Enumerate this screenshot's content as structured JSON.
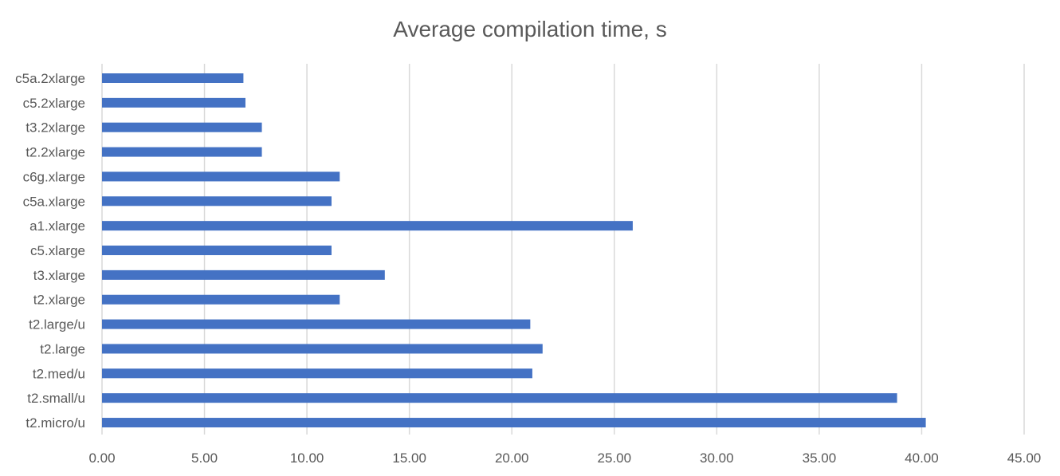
{
  "chart_data": {
    "type": "bar",
    "orientation": "horizontal",
    "title": "Average compilation time, s",
    "xlabel": "",
    "ylabel": "",
    "categories": [
      "c5a.2xlarge",
      "c5.2xlarge",
      "t3.2xlarge",
      "t2.2xlarge",
      "c6g.xlarge",
      "c5a.xlarge",
      "a1.xlarge",
      "c5.xlarge",
      "t3.xlarge",
      "t2.xlarge",
      "t2.large/u",
      "t2.large",
      "t2.med/u",
      "t2.small/u",
      "t2.micro/u"
    ],
    "values": [
      6.9,
      7.0,
      7.8,
      7.8,
      11.6,
      11.2,
      25.9,
      11.2,
      13.8,
      11.6,
      20.9,
      21.5,
      21.0,
      38.8,
      40.2
    ],
    "xlim": [
      0,
      45
    ],
    "xticks": [
      "0.00",
      "5.00",
      "10.00",
      "15.00",
      "20.00",
      "25.00",
      "30.00",
      "35.00",
      "40.00",
      "45.00"
    ],
    "grid": true,
    "legend": "none",
    "colors": {
      "bar": "#4472c4",
      "grid": "#d9d9d9",
      "text": "#595959"
    }
  }
}
